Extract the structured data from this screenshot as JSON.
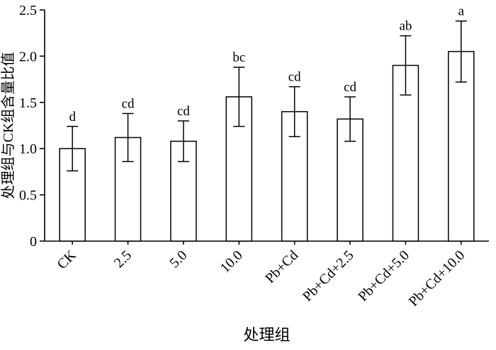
{
  "chart_data": {
    "type": "bar",
    "title": "",
    "xlabel": "处理组",
    "ylabel": "处理组与CK组含量比值",
    "categories": [
      "CK",
      "2.5",
      "5.0",
      "10.0",
      "Pb+Cd",
      "Pb+Cd+2.5",
      "Pb+Cd+5.0",
      "Pb+Cd+10.0"
    ],
    "values": [
      1.0,
      1.12,
      1.08,
      1.56,
      1.4,
      1.32,
      1.9,
      2.05
    ],
    "errors": [
      0.24,
      0.26,
      0.22,
      0.32,
      0.27,
      0.24,
      0.32,
      0.33
    ],
    "letters": [
      "d",
      "cd",
      "cd",
      "bc",
      "cd",
      "cd",
      "ab",
      "a"
    ],
    "ylim": [
      0,
      2.5
    ],
    "yticks": [
      "0",
      "0.5",
      "1.0",
      "1.5",
      "2.0",
      "2.5"
    ],
    "grid": false,
    "legend": "none",
    "bar_fill": "#ffffff",
    "bar_stroke": "#000000",
    "axis_color": "#000000",
    "background_color": "#ffffff"
  }
}
